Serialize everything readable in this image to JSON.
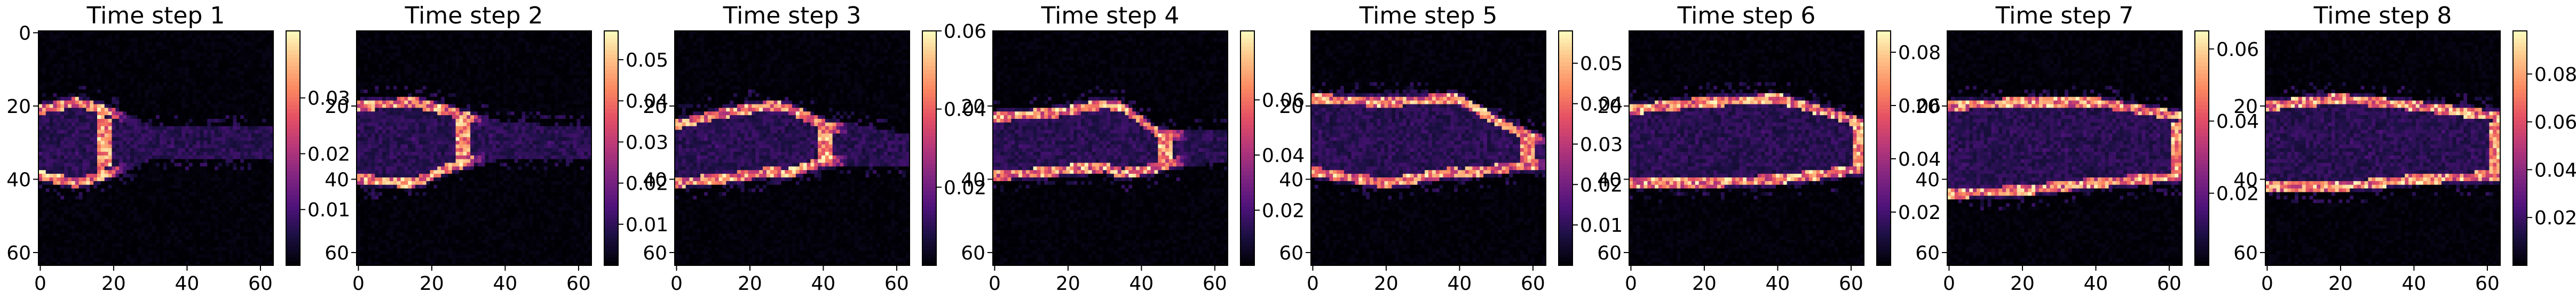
{
  "colormap": "magma",
  "chart_data": [
    {
      "type": "heatmap",
      "title": "Time step 1",
      "x_ticks": [
        0,
        20,
        40,
        60
      ],
      "y_ticks": [
        0,
        20,
        40,
        60
      ],
      "xlim": [
        0,
        64
      ],
      "ylim": [
        64,
        0
      ],
      "colorbar": {
        "range": [
          0.0,
          0.042
        ],
        "ticks": [
          0.01,
          0.02,
          0.03
        ],
        "tick_labels": [
          "0.01",
          "0.02",
          "0.03"
        ]
      },
      "field": {
        "centerline": [
          [
            0,
            30
          ],
          [
            10,
            30
          ],
          [
            20,
            30
          ],
          [
            64,
            30
          ]
        ],
        "halfwidth": [
          [
            0,
            9
          ],
          [
            10,
            11
          ],
          [
            20,
            8
          ],
          [
            30,
            3
          ],
          [
            64,
            2
          ]
        ],
        "front": 19,
        "ridge_peak": 0.042
      }
    },
    {
      "type": "heatmap",
      "title": "Time step 2",
      "x_ticks": [
        0,
        20,
        40,
        60
      ],
      "y_ticks": [
        20,
        40,
        60
      ],
      "xlim": [
        0,
        64
      ],
      "ylim": [
        64,
        0
      ],
      "colorbar": {
        "range": [
          0.0,
          0.057
        ],
        "ticks": [
          0.01,
          0.02,
          0.03,
          0.04,
          0.05
        ],
        "tick_labels": [
          "0.01",
          "0.02",
          "0.03",
          "0.04",
          "0.05"
        ]
      },
      "field": {
        "centerline": [
          [
            0,
            30
          ],
          [
            15,
            30
          ],
          [
            27,
            29
          ],
          [
            64,
            30
          ]
        ],
        "halfwidth": [
          [
            0,
            10
          ],
          [
            15,
            11
          ],
          [
            27,
            7
          ],
          [
            40,
            3
          ],
          [
            64,
            2
          ]
        ],
        "front": 30,
        "ridge_peak": 0.057
      }
    },
    {
      "type": "heatmap",
      "title": "Time step 3",
      "x_ticks": [
        0,
        20,
        40,
        60
      ],
      "y_ticks": [
        20,
        40,
        60
      ],
      "xlim": [
        0,
        64
      ],
      "ylim": [
        64,
        0
      ],
      "colorbar": {
        "range": [
          0.0,
          0.06
        ],
        "ticks": [
          0.02,
          0.04,
          0.06
        ],
        "tick_labels": [
          "0.02",
          "0.04",
          "0.06"
        ]
      },
      "field": {
        "centerline": [
          [
            0,
            33
          ],
          [
            12,
            31
          ],
          [
            25,
            29
          ],
          [
            38,
            30
          ],
          [
            64,
            32
          ]
        ],
        "halfwidth": [
          [
            0,
            8
          ],
          [
            15,
            9
          ],
          [
            30,
            9
          ],
          [
            40,
            5
          ],
          [
            64,
            2
          ]
        ],
        "front": 42,
        "ridge_peak": 0.06
      }
    },
    {
      "type": "heatmap",
      "title": "Time step 4",
      "x_ticks": [
        0,
        20,
        40,
        60
      ],
      "y_ticks": [
        20,
        40,
        60
      ],
      "xlim": [
        0,
        64
      ],
      "ylim": [
        64,
        0
      ],
      "colorbar": {
        "range": [
          0.0,
          0.085
        ],
        "ticks": [
          0.02,
          0.04,
          0.06
        ],
        "tick_labels": [
          "0.02",
          "0.04",
          "0.06"
        ]
      },
      "field": {
        "centerline": [
          [
            0,
            31
          ],
          [
            15,
            30
          ],
          [
            30,
            28
          ],
          [
            44,
            32
          ],
          [
            64,
            31
          ]
        ],
        "halfwidth": [
          [
            0,
            8
          ],
          [
            20,
            8
          ],
          [
            35,
            9
          ],
          [
            46,
            4
          ],
          [
            64,
            2
          ]
        ],
        "front": 48,
        "ridge_peak": 0.085
      }
    },
    {
      "type": "heatmap",
      "title": "Time step 5",
      "x_ticks": [
        0,
        20,
        40,
        60
      ],
      "y_ticks": [
        20,
        40,
        60
      ],
      "xlim": [
        0,
        64
      ],
      "ylim": [
        64,
        0
      ],
      "colorbar": {
        "range": [
          0.0,
          0.058
        ],
        "ticks": [
          0.01,
          0.02,
          0.03,
          0.04,
          0.05
        ],
        "tick_labels": [
          "0.01",
          "0.02",
          "0.03",
          "0.04",
          "0.05"
        ]
      },
      "field": {
        "centerline": [
          [
            0,
            28
          ],
          [
            20,
            30
          ],
          [
            38,
            28
          ],
          [
            52,
            31
          ],
          [
            64,
            33
          ]
        ],
        "halfwidth": [
          [
            0,
            10
          ],
          [
            20,
            11
          ],
          [
            40,
            10
          ],
          [
            55,
            5
          ],
          [
            64,
            3
          ]
        ],
        "front": 60,
        "ridge_peak": 0.058
      }
    },
    {
      "type": "heatmap",
      "title": "Time step 6",
      "x_ticks": [
        0,
        20,
        40,
        60
      ],
      "y_ticks": [
        20,
        40,
        60
      ],
      "xlim": [
        0,
        64
      ],
      "ylim": [
        64,
        0
      ],
      "colorbar": {
        "range": [
          0.0,
          0.088
        ],
        "ticks": [
          0.02,
          0.04,
          0.06,
          0.08
        ],
        "tick_labels": [
          "0.02",
          "0.04",
          "0.06",
          "0.08"
        ]
      },
      "field": {
        "centerline": [
          [
            0,
            31
          ],
          [
            20,
            30
          ],
          [
            40,
            29
          ],
          [
            64,
            31
          ]
        ],
        "halfwidth": [
          [
            0,
            10
          ],
          [
            20,
            11
          ],
          [
            40,
            11
          ],
          [
            55,
            8
          ],
          [
            64,
            6
          ]
        ],
        "front": 64,
        "ridge_peak": 0.088
      }
    },
    {
      "type": "heatmap",
      "title": "Time step 7",
      "x_ticks": [
        0,
        20,
        40,
        60
      ],
      "y_ticks": [
        20,
        40,
        60
      ],
      "xlim": [
        0,
        64
      ],
      "ylim": [
        64,
        0
      ],
      "colorbar": {
        "range": [
          0.0,
          0.065
        ],
        "ticks": [
          0.02,
          0.04,
          0.06
        ],
        "tick_labels": [
          "0.02",
          "0.04",
          "0.06"
        ]
      },
      "field": {
        "centerline": [
          [
            0,
            32
          ],
          [
            20,
            31
          ],
          [
            40,
            30
          ],
          [
            64,
            31
          ]
        ],
        "halfwidth": [
          [
            0,
            12
          ],
          [
            20,
            12
          ],
          [
            40,
            11
          ],
          [
            64,
            8
          ]
        ],
        "front": 64,
        "ridge_peak": 0.065
      }
    },
    {
      "type": "heatmap",
      "title": "Time step 8",
      "x_ticks": [
        0,
        20,
        40,
        60
      ],
      "y_ticks": [
        20,
        40,
        60
      ],
      "xlim": [
        0,
        64
      ],
      "ylim": [
        64,
        0
      ],
      "colorbar": {
        "range": [
          0.0,
          0.098
        ],
        "ticks": [
          0.02,
          0.04,
          0.06,
          0.08
        ],
        "tick_labels": [
          "0.02",
          "0.04",
          "0.06",
          "0.08"
        ]
      },
      "field": {
        "centerline": [
          [
            0,
            31
          ],
          [
            20,
            30
          ],
          [
            40,
            30
          ],
          [
            64,
            31
          ]
        ],
        "halfwidth": [
          [
            0,
            11
          ],
          [
            20,
            12
          ],
          [
            40,
            10
          ],
          [
            64,
            8
          ]
        ],
        "front": 64,
        "ridge_peak": 0.098
      }
    }
  ]
}
